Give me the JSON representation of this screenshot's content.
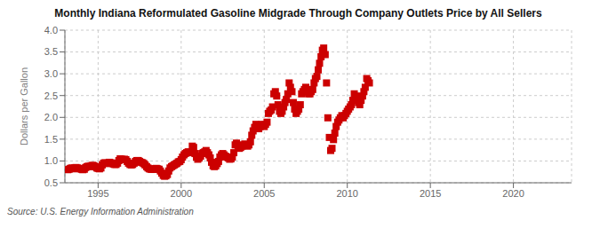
{
  "chart_data": {
    "type": "scatter",
    "title": "Monthly Indiana Reformulated Gasoline Midgrade Through Company Outlets Price by All Sellers",
    "y_label": "Dollars per Gallon",
    "annotations": [
      "Source: U.S. Energy Information Administration"
    ],
    "color": "#cc0000",
    "marker": "square",
    "grid": true,
    "xlim": [
      1993.0,
      2023.5
    ],
    "ylim": [
      0.5,
      4.0
    ],
    "xticks": [
      1995,
      2000,
      2005,
      2010,
      2015,
      2020
    ],
    "yticks": [
      0.5,
      {
        "value": 1.0,
        "label": "1.0"
      },
      1.5,
      {
        "value": 2.0,
        "label": "2.0"
      },
      2.5,
      {
        "value": 3.0,
        "label": "3.0"
      },
      3.5,
      {
        "value": 4.0,
        "label": "4.0"
      }
    ],
    "x": [
      1993.17,
      1993.25,
      1993.33,
      1993.42,
      1993.5,
      1993.58,
      1993.67,
      1993.75,
      1993.83,
      1993.92,
      1994.0,
      1994.08,
      1994.17,
      1994.25,
      1994.33,
      1994.42,
      1994.5,
      1994.58,
      1994.67,
      1994.75,
      1994.83,
      1994.92,
      1995.0,
      1995.08,
      1995.17,
      1995.25,
      1995.33,
      1995.42,
      1995.5,
      1995.58,
      1995.67,
      1995.75,
      1995.83,
      1995.92,
      1996.0,
      1996.08,
      1996.17,
      1996.25,
      1996.33,
      1996.42,
      1996.5,
      1996.58,
      1996.67,
      1996.75,
      1996.83,
      1996.92,
      1997.0,
      1997.08,
      1997.17,
      1997.25,
      1997.33,
      1997.42,
      1997.5,
      1997.58,
      1997.67,
      1997.75,
      1997.83,
      1997.92,
      1998.0,
      1998.08,
      1998.17,
      1998.25,
      1998.33,
      1998.42,
      1998.5,
      1998.58,
      1998.67,
      1998.75,
      1998.83,
      1998.92,
      1999.0,
      1999.08,
      1999.17,
      1999.25,
      1999.33,
      1999.42,
      1999.5,
      1999.58,
      1999.67,
      1999.75,
      1999.83,
      1999.92,
      2000.0,
      2000.08,
      2000.17,
      2000.25,
      2000.33,
      2000.42,
      2000.5,
      2000.58,
      2000.67,
      2000.75,
      2000.83,
      2000.92,
      2001.0,
      2001.08,
      2001.17,
      2001.25,
      2001.33,
      2001.42,
      2001.5,
      2001.58,
      2001.67,
      2001.75,
      2001.83,
      2001.92,
      2002.0,
      2002.08,
      2002.17,
      2002.25,
      2002.33,
      2002.42,
      2002.5,
      2002.58,
      2002.67,
      2002.75,
      2002.83,
      2002.92,
      2003.0,
      2003.08,
      2003.17,
      2003.25,
      2003.33,
      2003.42,
      2003.5,
      2003.58,
      2003.67,
      2003.75,
      2003.83,
      2003.92,
      2004.0,
      2004.08,
      2004.17,
      2004.25,
      2004.33,
      2004.42,
      2004.5,
      2004.58,
      2004.67,
      2004.75,
      2004.83,
      2004.92,
      2005.0,
      2005.08,
      2005.17,
      2005.25,
      2005.33,
      2005.42,
      2005.5,
      2005.58,
      2005.67,
      2005.75,
      2005.83,
      2005.92,
      2006.0,
      2006.08,
      2006.17,
      2006.25,
      2006.33,
      2006.42,
      2006.5,
      2006.58,
      2006.67,
      2006.75,
      2006.83,
      2006.92,
      2007.0,
      2007.08,
      2007.17,
      2007.25,
      2007.33,
      2007.42,
      2007.5,
      2007.58,
      2007.67,
      2007.75,
      2007.83,
      2007.92,
      2008.0,
      2008.08,
      2008.17,
      2008.25,
      2008.33,
      2008.42,
      2008.5,
      2008.58,
      2008.67,
      2008.75,
      2008.83,
      2008.92,
      2009.0,
      2009.08,
      2009.17,
      2009.25,
      2009.33,
      2009.42,
      2009.5,
      2009.58,
      2009.67,
      2009.75,
      2009.83,
      2009.92,
      2010.0,
      2010.08,
      2010.17,
      2010.25,
      2010.33,
      2010.42,
      2010.5,
      2010.58,
      2010.67,
      2010.75,
      2010.83,
      2010.92,
      2011.0,
      2011.08,
      2011.17,
      2011.25,
      2011.33
    ],
    "values": [
      0.8,
      0.81,
      0.83,
      0.84,
      0.82,
      0.84,
      0.85,
      0.84,
      0.83,
      0.82,
      0.81,
      0.8,
      0.81,
      0.85,
      0.87,
      0.88,
      0.87,
      0.89,
      0.9,
      0.89,
      0.87,
      0.84,
      0.83,
      0.82,
      0.84,
      0.91,
      0.95,
      0.96,
      0.94,
      0.95,
      0.97,
      0.96,
      0.95,
      0.93,
      0.92,
      0.92,
      0.95,
      1.01,
      1.05,
      1.04,
      1.03,
      1.04,
      1.03,
      0.99,
      0.95,
      0.92,
      0.91,
      0.92,
      0.95,
      0.99,
      1.01,
      1.01,
      0.99,
      0.97,
      0.96,
      0.94,
      0.91,
      0.87,
      0.84,
      0.82,
      0.81,
      0.81,
      0.81,
      0.82,
      0.83,
      0.82,
      0.81,
      0.77,
      0.72,
      0.67,
      0.65,
      0.66,
      0.69,
      0.77,
      0.84,
      0.87,
      0.89,
      0.91,
      0.93,
      0.95,
      0.98,
      0.99,
      1.03,
      1.09,
      1.14,
      1.17,
      1.19,
      1.21,
      1.2,
      1.19,
      1.34,
      1.31,
      1.17,
      1.09,
      1.04,
      1.07,
      1.11,
      1.17,
      1.19,
      1.21,
      1.24,
      1.19,
      1.14,
      1.07,
      0.97,
      0.89,
      0.87,
      0.89,
      0.94,
      0.99,
      1.09,
      1.14,
      1.17,
      1.14,
      1.11,
      1.09,
      1.07,
      1.04,
      1.05,
      1.09,
      1.19,
      1.37,
      1.41,
      1.34,
      1.29,
      1.31,
      1.34,
      1.37,
      1.39,
      1.37,
      1.34,
      1.37,
      1.44,
      1.59,
      1.69,
      1.77,
      1.84,
      1.81,
      1.74,
      1.79,
      1.84,
      1.81,
      1.79,
      1.84,
      1.89,
      2.09,
      2.14,
      2.17,
      2.24,
      2.54,
      2.59,
      2.49,
      2.29,
      2.14,
      2.09,
      2.14,
      2.24,
      2.34,
      2.41,
      2.54,
      2.79,
      2.69,
      2.59,
      2.34,
      2.19,
      2.09,
      2.14,
      2.19,
      2.29,
      2.54,
      2.59,
      2.64,
      2.69,
      2.59,
      2.54,
      2.54,
      2.59,
      2.64,
      2.79,
      2.89,
      2.94,
      3.09,
      3.24,
      3.39,
      3.54,
      3.59,
      3.44,
      2.79,
      1.99,
      1.54,
      1.24,
      1.29,
      1.49,
      1.64,
      1.79,
      1.89,
      1.94,
      1.99,
      2.04,
      1.99,
      2.04,
      2.09,
      2.14,
      2.19,
      2.24,
      2.29,
      2.39,
      2.54,
      2.49,
      2.39,
      2.34,
      2.29,
      2.39,
      2.49,
      2.59,
      2.69,
      2.89,
      2.84,
      2.79
    ]
  }
}
